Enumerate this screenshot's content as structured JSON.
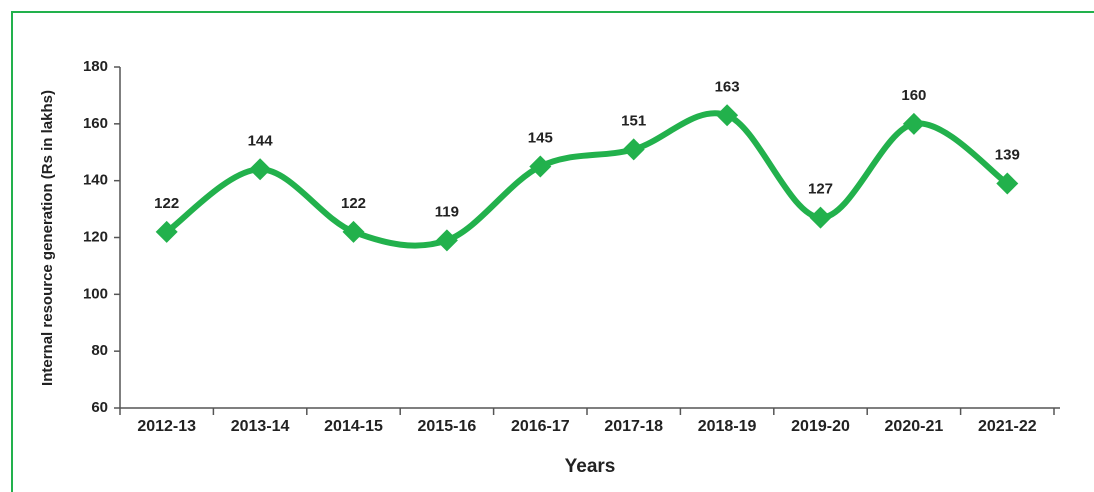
{
  "chart_data": {
    "type": "line",
    "x_label": "Years",
    "y_label": "Internal resource generation (Rs in lakhs)",
    "categories": [
      "2012-13",
      "2013-14",
      "2014-15",
      "2015-16",
      "2016-17",
      "2017-18",
      "2018-19",
      "2019-20",
      "2020-21",
      "2021-22"
    ],
    "values": [
      122,
      144,
      122,
      119,
      145,
      151,
      163,
      127,
      160,
      139
    ],
    "color": "#22b14c",
    "smooth": true,
    "marker": "diamond",
    "ylim": [
      60,
      180
    ],
    "yticks": [
      60,
      80,
      100,
      120,
      140,
      160,
      180
    ]
  }
}
